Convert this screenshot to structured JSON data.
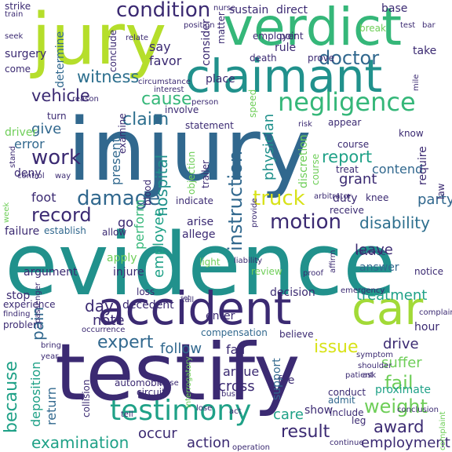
{
  "colors": {
    "background": "#ffffff",
    "navy": "#3b2a72",
    "indigo": "#443983",
    "purple": "#482878",
    "dark_purple": "#440154",
    "blue": "#31688e",
    "steel_blue": "#2d6f8e",
    "teal": "#21918c",
    "green_teal": "#1fa187",
    "green": "#35b779",
    "lime": "#6ece58",
    "yellow_green": "#b5de2b",
    "yellow": "#d8e219"
  },
  "words": [
    {
      "text": "evidence",
      "color": "#21918c"
    },
    {
      "text": "injury",
      "color": "#31688e"
    },
    {
      "text": "testify",
      "color": "#3b2a72"
    },
    {
      "text": "jury",
      "color": "#b5de2b"
    },
    {
      "text": "verdict",
      "color": "#35b779"
    },
    {
      "text": "claimant",
      "color": "#21918c"
    },
    {
      "text": "accident",
      "color": "#3b2a72"
    },
    {
      "text": "car",
      "color": "#a2da37"
    },
    {
      "text": "testimony",
      "color": "#1fa187"
    },
    {
      "text": "negligence",
      "color": "#35b779"
    },
    {
      "text": "condition",
      "color": "#3b2a72"
    },
    {
      "text": "witness",
      "color": "#2d6f8e"
    },
    {
      "text": "damage",
      "color": "#31688e"
    },
    {
      "text": "record",
      "color": "#3b2a72"
    },
    {
      "text": "motion",
      "color": "#3b2a72"
    },
    {
      "text": "truck",
      "color": "#d8e219"
    },
    {
      "text": "instruction",
      "color": "#31688e"
    },
    {
      "text": "doctor",
      "color": "#31688e"
    },
    {
      "text": "cause",
      "color": "#35b779"
    },
    {
      "text": "vehicle",
      "color": "#3b2a72"
    },
    {
      "text": "claim",
      "color": "#2d6f8e"
    },
    {
      "text": "work",
      "color": "#3b2a72"
    },
    {
      "text": "report",
      "color": "#1fa187"
    },
    {
      "text": "expert",
      "color": "#31688e"
    },
    {
      "text": "result",
      "color": "#3b2a72"
    },
    {
      "text": "award",
      "color": "#3b2a72"
    },
    {
      "text": "weight",
      "color": "#6ece58"
    },
    {
      "text": "fail",
      "color": "#6ece58"
    },
    {
      "text": "issue",
      "color": "#d8e219"
    },
    {
      "text": "drive",
      "color": "#3b2a72"
    },
    {
      "text": "because",
      "color": "#1fa187"
    },
    {
      "text": "pain",
      "color": "#31688e"
    },
    {
      "text": "disability",
      "color": "#2d6f8e"
    },
    {
      "text": "hospital",
      "color": "#21918c"
    },
    {
      "text": "physician",
      "color": "#21918c"
    },
    {
      "text": "employee",
      "color": "#1fa187"
    },
    {
      "text": "party",
      "color": "#31688e"
    },
    {
      "text": "grant",
      "color": "#3b2a72"
    },
    {
      "text": "foot",
      "color": "#3b2a72"
    },
    {
      "text": "give",
      "color": "#31688e"
    },
    {
      "text": "day",
      "color": "#3b2a72"
    },
    {
      "text": "note",
      "color": "#3b2a72"
    },
    {
      "text": "examination",
      "color": "#1fa187"
    },
    {
      "text": "employment",
      "color": "#3b2a72"
    },
    {
      "text": "action",
      "color": "#3b2a72"
    },
    {
      "text": "care",
      "color": "#1fa187"
    },
    {
      "text": "treatment",
      "color": "#1fa187"
    },
    {
      "text": "suffer",
      "color": "#6ece58"
    },
    {
      "text": "follow",
      "color": "#31688e"
    },
    {
      "text": "fall",
      "color": "#3b2a72"
    },
    {
      "text": "argue",
      "color": "#3b2a72"
    },
    {
      "text": "cross",
      "color": "#3b2a72"
    },
    {
      "text": "occur",
      "color": "#3b2a72"
    },
    {
      "text": "say",
      "color": "#3b2a72"
    },
    {
      "text": "favor",
      "color": "#3b2a72"
    },
    {
      "text": "rule",
      "color": "#3b2a72"
    },
    {
      "text": "sustain",
      "color": "#3b2a72"
    },
    {
      "text": "direct",
      "color": "#3b2a72"
    },
    {
      "text": "base",
      "color": "#3b2a72"
    },
    {
      "text": "take",
      "color": "#3b2a72"
    },
    {
      "text": "contend",
      "color": "#31688e"
    },
    {
      "text": "duty",
      "color": "#3b2a72"
    },
    {
      "text": "knee",
      "color": "#3b2a72"
    },
    {
      "text": "leave",
      "color": "#3b2a72"
    },
    {
      "text": "answer",
      "color": "#31688e"
    },
    {
      "text": "notice",
      "color": "#3b2a72"
    },
    {
      "text": "hour",
      "color": "#3b2a72"
    },
    {
      "text": "proximate",
      "color": "#1fa187"
    },
    {
      "text": "show",
      "color": "#3b2a72"
    },
    {
      "text": "admit",
      "color": "#31688e"
    },
    {
      "text": "leg",
      "color": "#3b2a72"
    },
    {
      "text": "deposition",
      "color": "#1fa187"
    },
    {
      "text": "return",
      "color": "#31688e"
    },
    {
      "text": "present",
      "color": "#31688e"
    },
    {
      "text": "go",
      "color": "#3b2a72"
    },
    {
      "text": "perform",
      "color": "#35b779"
    },
    {
      "text": "arise",
      "color": "#3b2a72"
    },
    {
      "text": "allege",
      "color": "#3b2a72"
    },
    {
      "text": "error",
      "color": "#31688e"
    },
    {
      "text": "deny",
      "color": "#3b2a72"
    },
    {
      "text": "driver",
      "color": "#6ece58"
    },
    {
      "text": "failure",
      "color": "#3b2a72"
    },
    {
      "text": "establish",
      "color": "#31688e"
    },
    {
      "text": "allow",
      "color": "#3b2a72"
    },
    {
      "text": "apply",
      "color": "#6ece58"
    },
    {
      "text": "injure",
      "color": "#3b2a72"
    },
    {
      "text": "argument",
      "color": "#3b2a72"
    },
    {
      "text": "stop",
      "color": "#3b2a72"
    },
    {
      "text": "loss",
      "color": "#3b2a72"
    },
    {
      "text": "decedent",
      "color": "#3b2a72"
    },
    {
      "text": "enter",
      "color": "#3b2a72"
    },
    {
      "text": "compensation",
      "color": "#31688e"
    },
    {
      "text": "believe",
      "color": "#3b2a72"
    },
    {
      "text": "decision",
      "color": "#3b2a72"
    },
    {
      "text": "review",
      "color": "#6ece58"
    },
    {
      "text": "support",
      "color": "#31688e"
    },
    {
      "text": "file",
      "color": "#3b2a72"
    },
    {
      "text": "automobile",
      "color": "#3b2a72"
    },
    {
      "text": "circuit",
      "color": "#3b2a72"
    },
    {
      "text": "collision",
      "color": "#3b2a72"
    },
    {
      "text": "surgery",
      "color": "#3b2a72"
    },
    {
      "text": "determine",
      "color": "#31688e"
    },
    {
      "text": "conclude",
      "color": "#3b2a72"
    },
    {
      "text": "consider",
      "color": "#3b2a72"
    },
    {
      "text": "matter",
      "color": "#3b2a72"
    },
    {
      "text": "employer",
      "color": "#3b2a72"
    },
    {
      "text": "death",
      "color": "#3b2a72"
    },
    {
      "text": "point",
      "color": "#3b2a72"
    },
    {
      "text": "prove",
      "color": "#3b2a72"
    },
    {
      "text": "place",
      "color": "#3b2a72"
    },
    {
      "text": "involve",
      "color": "#3b2a72"
    },
    {
      "text": "statement",
      "color": "#3b2a72"
    },
    {
      "text": "examine",
      "color": "#3b2a72"
    },
    {
      "text": "blood",
      "color": "#6ece58"
    },
    {
      "text": "objection",
      "color": "#3b2a72"
    },
    {
      "text": "trailer",
      "color": "#3b2a72"
    },
    {
      "text": "indicate",
      "color": "#6ece58"
    },
    {
      "text": "discretion",
      "color": "#6ece58"
    },
    {
      "text": "course",
      "color": "#3b2a72"
    },
    {
      "text": "treat",
      "color": "#3b2a72"
    },
    {
      "text": "require",
      "color": "#3b2a72"
    },
    {
      "text": "know",
      "color": "#3b2a72"
    },
    {
      "text": "appear",
      "color": "#3b2a72"
    },
    {
      "text": "receive",
      "color": "#3b2a72"
    },
    {
      "text": "arbitrator",
      "color": "#3b2a72"
    },
    {
      "text": "law",
      "color": "#3b2a72"
    },
    {
      "text": "speed",
      "color": "#6ece58"
    },
    {
      "text": "provide",
      "color": "#3b2a72"
    },
    {
      "text": "strike",
      "color": "#3b2a72"
    },
    {
      "text": "train",
      "color": "#3b2a72"
    },
    {
      "text": "seek",
      "color": "#3b2a72"
    },
    {
      "text": "come",
      "color": "#3b2a72"
    },
    {
      "text": "reason",
      "color": "#3b2a72"
    },
    {
      "text": "turn",
      "color": "#3b2a72"
    },
    {
      "text": "relate",
      "color": "#3b2a72"
    },
    {
      "text": "position",
      "color": "#3b2a72"
    },
    {
      "text": "nurse",
      "color": "#3b2a72"
    },
    {
      "text": "bar",
      "color": "#3b2a72"
    },
    {
      "text": "test",
      "color": "#3b2a72"
    },
    {
      "text": "mile",
      "color": "#3b2a72"
    },
    {
      "text": "person",
      "color": "#6ece58"
    },
    {
      "text": "break",
      "color": "#3b2a72"
    },
    {
      "text": "liability",
      "color": "#3b2a72"
    },
    {
      "text": "proof",
      "color": "#3b2a72"
    },
    {
      "text": "affirm",
      "color": "#6ece58"
    },
    {
      "text": "light",
      "color": "#3b2a72"
    },
    {
      "text": "emergency",
      "color": "#3b2a72"
    },
    {
      "text": "reverse",
      "color": "#3b2a72"
    },
    {
      "text": "complain",
      "color": "#3b2a72"
    },
    {
      "text": "symptom",
      "color": "#3b2a72"
    },
    {
      "text": "shoulder",
      "color": "#3b2a72"
    },
    {
      "text": "ask",
      "color": "#3b2a72"
    },
    {
      "text": "patient",
      "color": "#3b2a72"
    },
    {
      "text": "bus",
      "color": "#3b2a72"
    },
    {
      "text": "act",
      "color": "#3b2a72"
    },
    {
      "text": "operation",
      "color": "#3b2a72"
    },
    {
      "text": "conclusion",
      "color": "#3b2a72"
    },
    {
      "text": "include",
      "color": "#3b2a72"
    },
    {
      "text": "passenger",
      "color": "#3b2a72"
    },
    {
      "text": "occurrence",
      "color": "#3b2a72"
    },
    {
      "text": "finding",
      "color": "#3b2a72"
    },
    {
      "text": "conduct",
      "color": "#3b2a72"
    },
    {
      "text": "bring",
      "color": "#3b2a72"
    },
    {
      "text": "year",
      "color": "#3b2a72"
    },
    {
      "text": "stand",
      "color": "#3b2a72"
    },
    {
      "text": "way",
      "color": "#3b2a72"
    },
    {
      "text": "experience",
      "color": "#3b2a72"
    },
    {
      "text": "week",
      "color": "#3b2a72"
    },
    {
      "text": "problem",
      "color": "#3b2a72"
    },
    {
      "text": "continue",
      "color": "#6ece58"
    },
    {
      "text": "control",
      "color": "#3b2a72"
    },
    {
      "text": "interrogatory",
      "color": "#3b2a72"
    },
    {
      "text": "complaint",
      "color": "#6ece58"
    },
    {
      "text": "circumstance",
      "color": "#6ece58"
    },
    {
      "text": "interest",
      "color": "#3b2a72"
    },
    {
      "text": "risk",
      "color": "#3b2a72"
    },
    {
      "text": "close",
      "color": "#3b2a72"
    },
    {
      "text": "call",
      "color": "#3b2a72"
    },
    {
      "text": "set",
      "color": "#3b2a72"
    },
    {
      "text": "tell",
      "color": "#3b2a72"
    },
    {
      "text": "lose",
      "color": "#3b2a72"
    },
    {
      "text": "offer",
      "color": "#3b2a72"
    }
  ]
}
